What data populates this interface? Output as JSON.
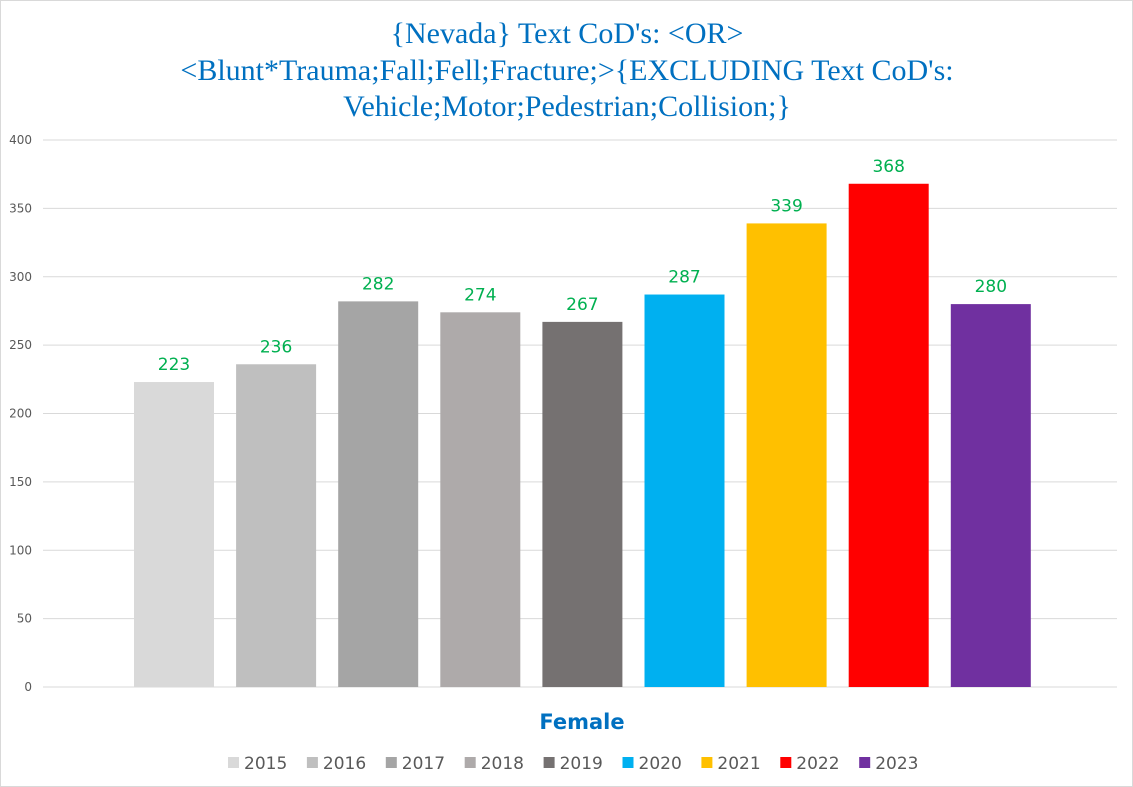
{
  "chart_data": {
    "type": "bar",
    "title_lines": [
      "{Nevada}  Text CoD's: <OR>",
      "<Blunt*Trauma;Fall;Fell;Fracture;>{EXCLUDING Text CoD's:",
      "Vehicle;Motor;Pedestrian;Collision;}"
    ],
    "xlabel": "Female",
    "ylabel": "",
    "ylim": [
      0,
      400
    ],
    "yticks": [
      0,
      50,
      100,
      150,
      200,
      250,
      300,
      350,
      400
    ],
    "grid": true,
    "legend_position": "bottom",
    "series": [
      {
        "name": "2015",
        "value": 223,
        "color": "#d9d9d9"
      },
      {
        "name": "2016",
        "value": 236,
        "color": "#bfbfbf"
      },
      {
        "name": "2017",
        "value": 282,
        "color": "#a5a5a5"
      },
      {
        "name": "2018",
        "value": 274,
        "color": "#aeaaaa"
      },
      {
        "name": "2019",
        "value": 267,
        "color": "#757171"
      },
      {
        "name": "2020",
        "value": 287,
        "color": "#00b0f0"
      },
      {
        "name": "2021",
        "value": 339,
        "color": "#ffc000"
      },
      {
        "name": "2022",
        "value": 368,
        "color": "#ff0000"
      },
      {
        "name": "2023",
        "value": 280,
        "color": "#7030a0"
      }
    ],
    "data_label_color": "#00b050",
    "title_color": "#0070c0"
  }
}
